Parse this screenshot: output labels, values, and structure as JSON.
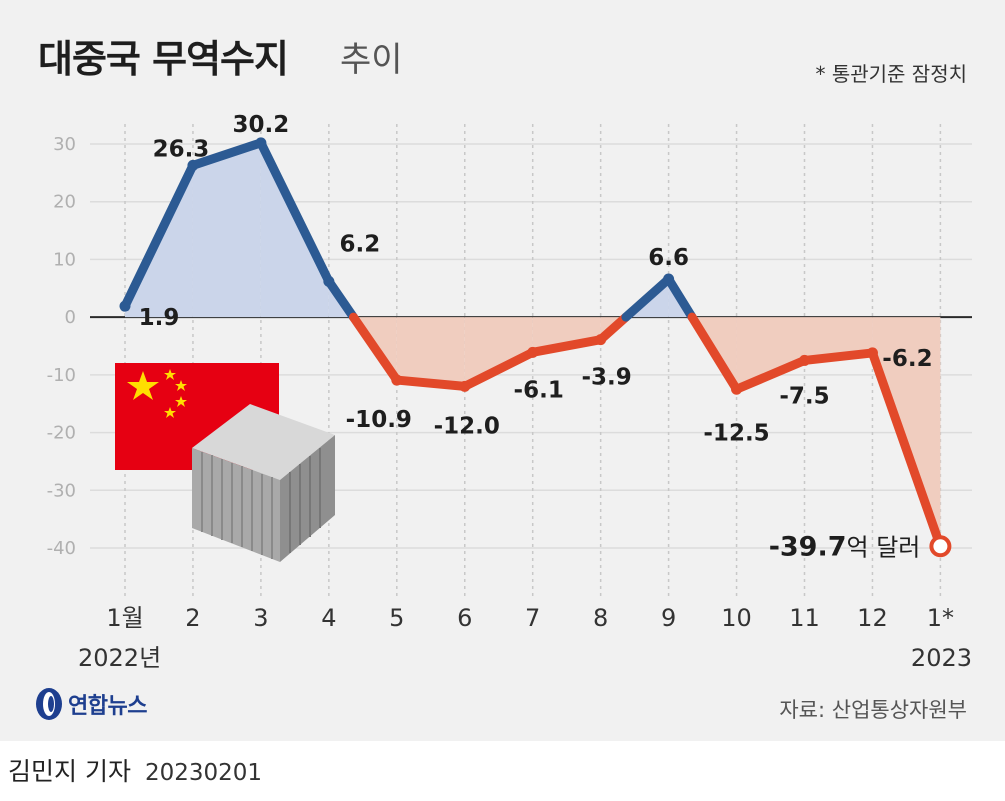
{
  "header": {
    "title": "대중국 무역수지",
    "subtitle": "추이",
    "note": "* 통관기준 잠정치"
  },
  "footer": {
    "source": "자료: 산업통상자원부",
    "logo_text": "연합뉴스",
    "byline": "김민지 기자",
    "date": "20230201"
  },
  "chart_data": {
    "type": "line",
    "categories": [
      "1월",
      "2",
      "3",
      "4",
      "5",
      "6",
      "7",
      "8",
      "9",
      "10",
      "11",
      "12",
      "1*"
    ],
    "category_sublabels": [
      {
        "index": 0,
        "text": "2022년"
      },
      {
        "index": 12,
        "text": "2023"
      }
    ],
    "values": [
      1.9,
      26.3,
      30.2,
      6.2,
      -10.9,
      -12.0,
      -6.1,
      -3.9,
      6.6,
      -12.5,
      -7.5,
      -6.2,
      -39.7
    ],
    "data_labels": [
      "1.9",
      "26.3",
      "30.2",
      "6.2",
      "-10.9",
      "-12.0",
      "-6.1",
      "-3.9",
      "6.6",
      "-12.5",
      "-7.5",
      "-6.2",
      "-39.7"
    ],
    "last_label_unit": "억 달러",
    "yticks": [
      30,
      20,
      10,
      0,
      -10,
      -20,
      -30,
      -40
    ],
    "ylim": [
      -40,
      30
    ],
    "grid": true,
    "colors": {
      "positive_line": "#2c5a93",
      "negative_line": "#e2492a",
      "positive_fill": "#cbd5ea",
      "negative_fill": "#f0cdbf"
    }
  }
}
